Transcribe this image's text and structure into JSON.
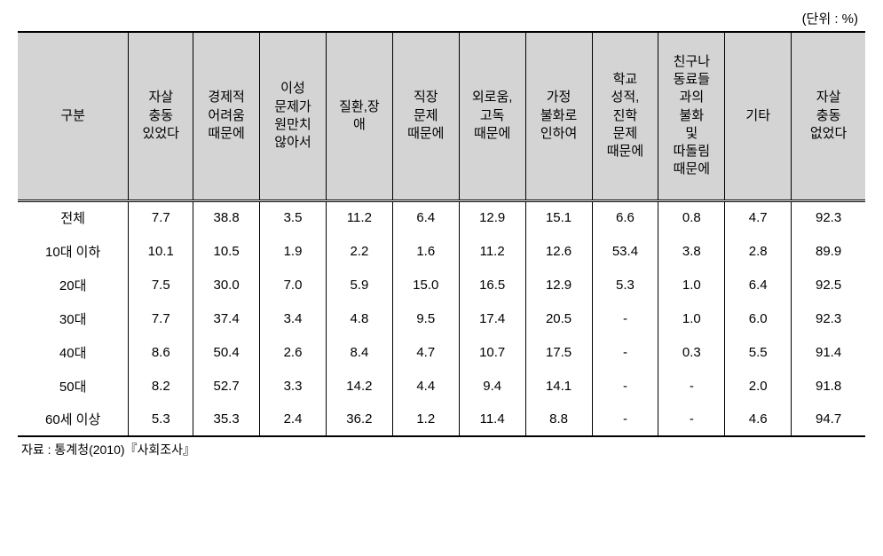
{
  "unit_label": "(단위 : %)",
  "source": "자료 : 통계청(2010)『사회조사』",
  "table": {
    "type": "table",
    "background_color": "#ffffff",
    "header_bg": "#d4d4d4",
    "border_color": "#000000",
    "columns": [
      "구분",
      "자살\n충동\n있었다",
      "경제적\n어려움\n때문에",
      "이성\n문제가\n원만치\n않아서",
      "질환,장\n애",
      "직장\n문제\n때문에",
      "외로움,\n고독\n때문에",
      "가정\n불화로\n인하여",
      "학교\n성적,\n진학\n문제\n때문에",
      "친구나\n동료들\n과의\n불화\n및\n따돌림\n때문에",
      "기타",
      "자살\n충동\n없었다"
    ],
    "rows": [
      {
        "label": "전체",
        "values": [
          "7.7",
          "38.8",
          "3.5",
          "11.2",
          "6.4",
          "12.9",
          "15.1",
          "6.6",
          "0.8",
          "4.7",
          "92.3"
        ]
      },
      {
        "label": "10대 이하",
        "values": [
          "10.1",
          "10.5",
          "1.9",
          "2.2",
          "1.6",
          "11.2",
          "12.6",
          "53.4",
          "3.8",
          "2.8",
          "89.9"
        ]
      },
      {
        "label": "20대",
        "values": [
          "7.5",
          "30.0",
          "7.0",
          "5.9",
          "15.0",
          "16.5",
          "12.9",
          "5.3",
          "1.0",
          "6.4",
          "92.5"
        ]
      },
      {
        "label": "30대",
        "values": [
          "7.7",
          "37.4",
          "3.4",
          "4.8",
          "9.5",
          "17.4",
          "20.5",
          "-",
          "1.0",
          "6.0",
          "92.3"
        ]
      },
      {
        "label": "40대",
        "values": [
          "8.6",
          "50.4",
          "2.6",
          "8.4",
          "4.7",
          "10.7",
          "17.5",
          "-",
          "0.3",
          "5.5",
          "91.4"
        ]
      },
      {
        "label": "50대",
        "values": [
          "8.2",
          "52.7",
          "3.3",
          "14.2",
          "4.4",
          "9.4",
          "14.1",
          "-",
          "-",
          "2.0",
          "91.8"
        ]
      },
      {
        "label": "60세 이상",
        "values": [
          "5.3",
          "35.3",
          "2.4",
          "36.2",
          "1.2",
          "11.4",
          "8.8",
          "-",
          "-",
          "4.6",
          "94.7"
        ]
      }
    ]
  }
}
